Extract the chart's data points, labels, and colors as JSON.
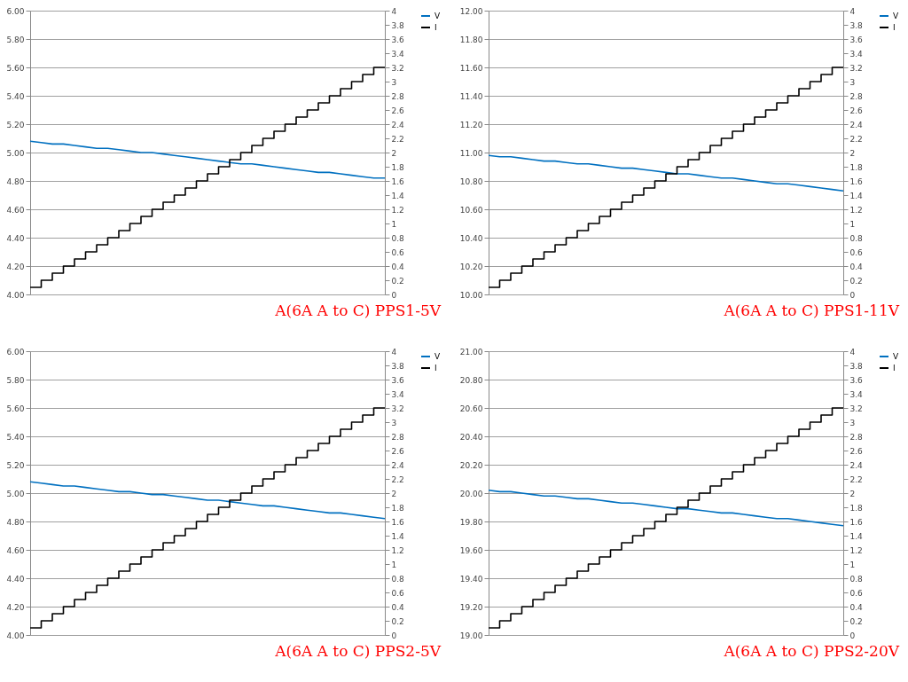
{
  "chart_data": [
    {
      "type": "line",
      "annotations": [
        "A(6A A to C) PPS1-5V"
      ],
      "categories": [
        null,
        null,
        null,
        null,
        null,
        null,
        null,
        null,
        null,
        null,
        null,
        null,
        null,
        null,
        null,
        null,
        null,
        null,
        null,
        null,
        null,
        null,
        null,
        null,
        null,
        null,
        null,
        null,
        null,
        null,
        null,
        null,
        null
      ],
      "ylim": [
        4,
        6
      ],
      "yticks": [
        {
          "value": 4,
          "label": "4.00"
        },
        {
          "value": 4.2,
          "label": "4.20"
        },
        {
          "value": 4.4,
          "label": "4.40"
        },
        {
          "value": 4.6,
          "label": "4.60"
        },
        {
          "value": 4.8,
          "label": "4.80"
        },
        {
          "value": 5,
          "label": "5.00"
        },
        {
          "value": 5.2,
          "label": "5.20"
        },
        {
          "value": 5.4,
          "label": "5.40"
        },
        {
          "value": 5.6,
          "label": "5.60"
        },
        {
          "value": 5.8,
          "label": "5.80"
        },
        {
          "value": 6,
          "label": "6.00"
        }
      ],
      "y2lim": [
        0,
        4
      ],
      "y2ticks": [
        0,
        0.2,
        0.4,
        0.6,
        0.8,
        1,
        1.2,
        1.4,
        1.6,
        1.8,
        2,
        2.2,
        2.4,
        2.6,
        2.8,
        3,
        3.2,
        3.4,
        3.6,
        3.8,
        4
      ],
      "grid": "y",
      "legend": "right",
      "series": [
        {
          "name": "V",
          "color": "#0070c0",
          "values": [
            5.08,
            5.07,
            5.06,
            5.06,
            5.05,
            5.04,
            5.03,
            5.03,
            5.02,
            5.01,
            5.0,
            5.0,
            4.99,
            4.98,
            4.97,
            4.96,
            4.95,
            4.94,
            4.93,
            4.92,
            4.92,
            4.91,
            4.9,
            4.89,
            4.88,
            4.87,
            4.86,
            4.86,
            4.85,
            4.84,
            4.83,
            4.82,
            4.82
          ]
        },
        {
          "name": "I",
          "type": "step",
          "axis": "y2",
          "color": "#000000",
          "values": [
            0.1,
            0.2,
            0.3,
            0.4,
            0.5,
            0.6,
            0.7,
            0.8,
            0.9,
            1.0,
            1.1,
            1.2,
            1.3,
            1.4,
            1.5,
            1.6,
            1.7,
            1.8,
            1.9,
            2.0,
            2.1,
            2.2,
            2.3,
            2.4,
            2.5,
            2.6,
            2.7,
            2.8,
            2.9,
            3.0,
            3.1,
            3.2,
            3.2
          ]
        }
      ]
    },
    {
      "type": "line",
      "annotations": [
        "A(6A A to C) PPS1-11V"
      ],
      "categories": [
        null,
        null,
        null,
        null,
        null,
        null,
        null,
        null,
        null,
        null,
        null,
        null,
        null,
        null,
        null,
        null,
        null,
        null,
        null,
        null,
        null,
        null,
        null,
        null,
        null,
        null,
        null,
        null,
        null,
        null,
        null,
        null,
        null
      ],
      "ylim": [
        10,
        12
      ],
      "yticks": [
        {
          "value": 10,
          "label": "10.00"
        },
        {
          "value": 10.2,
          "label": "10.20"
        },
        {
          "value": 10.4,
          "label": "10.40"
        },
        {
          "value": 10.6,
          "label": "10.60"
        },
        {
          "value": 10.8,
          "label": "10.80"
        },
        {
          "value": 11,
          "label": "11.00"
        },
        {
          "value": 11.2,
          "label": "11.20"
        },
        {
          "value": 11.4,
          "label": "11.40"
        },
        {
          "value": 11.6,
          "label": "11.60"
        },
        {
          "value": 11.8,
          "label": "11.80"
        },
        {
          "value": 12,
          "label": "12.00"
        }
      ],
      "y2lim": [
        0,
        4
      ],
      "y2ticks": [
        0,
        0.2,
        0.4,
        0.6,
        0.8,
        1,
        1.2,
        1.4,
        1.6,
        1.8,
        2,
        2.2,
        2.4,
        2.6,
        2.8,
        3,
        3.2,
        3.4,
        3.6,
        3.8,
        4
      ],
      "grid": "y",
      "legend": "right",
      "series": [
        {
          "name": "V",
          "color": "#0070c0",
          "values": [
            10.98,
            10.97,
            10.97,
            10.96,
            10.95,
            10.94,
            10.94,
            10.93,
            10.92,
            10.92,
            10.91,
            10.9,
            10.89,
            10.89,
            10.88,
            10.87,
            10.86,
            10.85,
            10.85,
            10.84,
            10.83,
            10.82,
            10.82,
            10.81,
            10.8,
            10.79,
            10.78,
            10.78,
            10.77,
            10.76,
            10.75,
            10.74,
            10.73
          ]
        },
        {
          "name": "I",
          "type": "step",
          "axis": "y2",
          "color": "#000000",
          "values": [
            0.1,
            0.2,
            0.3,
            0.4,
            0.5,
            0.6,
            0.7,
            0.8,
            0.9,
            1.0,
            1.1,
            1.2,
            1.3,
            1.4,
            1.5,
            1.6,
            1.7,
            1.8,
            1.9,
            2.0,
            2.1,
            2.2,
            2.3,
            2.4,
            2.5,
            2.6,
            2.7,
            2.8,
            2.9,
            3.0,
            3.1,
            3.2,
            3.2
          ]
        }
      ]
    },
    {
      "type": "line",
      "annotations": [
        "A(6A A to C) PPS2-5V"
      ],
      "categories": [
        null,
        null,
        null,
        null,
        null,
        null,
        null,
        null,
        null,
        null,
        null,
        null,
        null,
        null,
        null,
        null,
        null,
        null,
        null,
        null,
        null,
        null,
        null,
        null,
        null,
        null,
        null,
        null,
        null,
        null,
        null,
        null,
        null
      ],
      "ylim": [
        4,
        6
      ],
      "yticks": [
        {
          "value": 4,
          "label": "4.00"
        },
        {
          "value": 4.2,
          "label": "4.20"
        },
        {
          "value": 4.4,
          "label": "4.40"
        },
        {
          "value": 4.6,
          "label": "4.60"
        },
        {
          "value": 4.8,
          "label": "4.80"
        },
        {
          "value": 5,
          "label": "5.00"
        },
        {
          "value": 5.2,
          "label": "5.20"
        },
        {
          "value": 5.4,
          "label": "5.40"
        },
        {
          "value": 5.6,
          "label": "5.60"
        },
        {
          "value": 5.8,
          "label": "5.80"
        },
        {
          "value": 6,
          "label": "6.00"
        }
      ],
      "y2lim": [
        0,
        4
      ],
      "y2ticks": [
        0,
        0.2,
        0.4,
        0.6,
        0.8,
        1,
        1.2,
        1.4,
        1.6,
        1.8,
        2,
        2.2,
        2.4,
        2.6,
        2.8,
        3,
        3.2,
        3.4,
        3.6,
        3.8,
        4
      ],
      "grid": "y",
      "legend": "right",
      "series": [
        {
          "name": "V",
          "color": "#0070c0",
          "values": [
            5.08,
            5.07,
            5.06,
            5.05,
            5.05,
            5.04,
            5.03,
            5.02,
            5.01,
            5.01,
            5.0,
            4.99,
            4.99,
            4.98,
            4.97,
            4.96,
            4.95,
            4.95,
            4.94,
            4.93,
            4.92,
            4.91,
            4.91,
            4.9,
            4.89,
            4.88,
            4.87,
            4.86,
            4.86,
            4.85,
            4.84,
            4.83,
            4.82
          ]
        },
        {
          "name": "I",
          "type": "step",
          "axis": "y2",
          "color": "#000000",
          "values": [
            0.1,
            0.2,
            0.3,
            0.4,
            0.5,
            0.6,
            0.7,
            0.8,
            0.9,
            1.0,
            1.1,
            1.2,
            1.3,
            1.4,
            1.5,
            1.6,
            1.7,
            1.8,
            1.9,
            2.0,
            2.1,
            2.2,
            2.3,
            2.4,
            2.5,
            2.6,
            2.7,
            2.8,
            2.9,
            3.0,
            3.1,
            3.2,
            3.2
          ]
        }
      ]
    },
    {
      "type": "line",
      "annotations": [
        "A(6A A to C) PPS2-20V"
      ],
      "categories": [
        null,
        null,
        null,
        null,
        null,
        null,
        null,
        null,
        null,
        null,
        null,
        null,
        null,
        null,
        null,
        null,
        null,
        null,
        null,
        null,
        null,
        null,
        null,
        null,
        null,
        null,
        null,
        null,
        null,
        null,
        null,
        null,
        null
      ],
      "ylim": [
        19,
        21
      ],
      "yticks": [
        {
          "value": 19,
          "label": "19.00"
        },
        {
          "value": 19.2,
          "label": "19.20"
        },
        {
          "value": 19.4,
          "label": "19.40"
        },
        {
          "value": 19.6,
          "label": "19.60"
        },
        {
          "value": 19.8,
          "label": "19.80"
        },
        {
          "value": 20,
          "label": "20.00"
        },
        {
          "value": 20.2,
          "label": "20.20"
        },
        {
          "value": 20.4,
          "label": "20.40"
        },
        {
          "value": 20.6,
          "label": "20.60"
        },
        {
          "value": 20.8,
          "label": "20.80"
        },
        {
          "value": 21,
          "label": "21.00"
        }
      ],
      "y2lim": [
        0,
        4
      ],
      "y2ticks": [
        0,
        0.2,
        0.4,
        0.6,
        0.8,
        1,
        1.2,
        1.4,
        1.6,
        1.8,
        2,
        2.2,
        2.4,
        2.6,
        2.8,
        3,
        3.2,
        3.4,
        3.6,
        3.8,
        4
      ],
      "grid": "y",
      "legend": "right",
      "series": [
        {
          "name": "V",
          "color": "#0070c0",
          "values": [
            20.02,
            20.01,
            20.01,
            20.0,
            19.99,
            19.98,
            19.98,
            19.97,
            19.96,
            19.96,
            19.95,
            19.94,
            19.93,
            19.93,
            19.92,
            19.91,
            19.9,
            19.89,
            19.89,
            19.88,
            19.87,
            19.86,
            19.86,
            19.85,
            19.84,
            19.83,
            19.82,
            19.82,
            19.81,
            19.8,
            19.79,
            19.78,
            19.77
          ]
        },
        {
          "name": "I",
          "type": "step",
          "axis": "y2",
          "color": "#000000",
          "values": [
            0.1,
            0.2,
            0.3,
            0.4,
            0.5,
            0.6,
            0.7,
            0.8,
            0.9,
            1.0,
            1.1,
            1.2,
            1.3,
            1.4,
            1.5,
            1.6,
            1.7,
            1.8,
            1.9,
            2.0,
            2.1,
            2.2,
            2.3,
            2.4,
            2.5,
            2.6,
            2.7,
            2.8,
            2.9,
            3.0,
            3.1,
            3.2,
            3.2
          ]
        }
      ]
    }
  ]
}
